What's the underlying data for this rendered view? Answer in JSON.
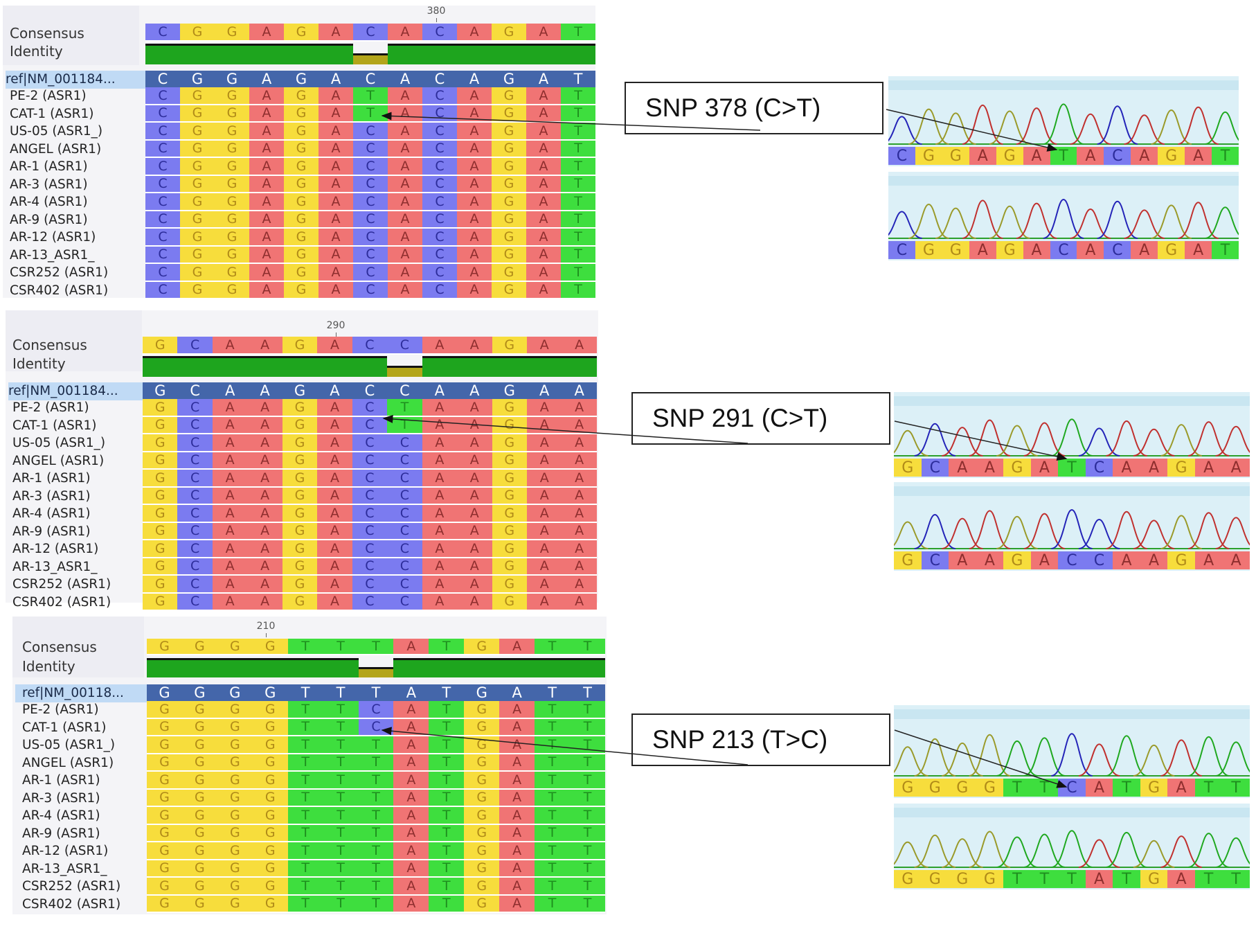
{
  "labels": {
    "consensus": "Consensus",
    "identity": "Identity"
  },
  "colors": {
    "A": "#f07474",
    "C": "#7b7bf0",
    "G": "#f7dd3c",
    "T": "#3ede3e",
    "ref_bg": "#4466aa",
    "identity_match": "#1ea51e",
    "identity_mismatch": "#b3a51a"
  },
  "rows": [
    "PE-2 (ASR1)",
    "CAT-1 (ASR1)",
    "US-05 (ASR1_)",
    "ANGEL (ASR1)",
    "AR-1 (ASR1)",
    "AR-3 (ASR1)",
    "AR-4 (ASR1)",
    "AR-9 (ASR1)",
    "AR-12 (ASR1)",
    "AR-13_ASR1_",
    "CSR252 (ASR1)",
    "CSR402 (ASR1)"
  ],
  "panels": [
    {
      "ref_name": "ref|NM_001184...",
      "ruler": "380",
      "consensus": "CGGAGACACAGAT",
      "alt": "T",
      "callout": "SNP 378 (C>T)",
      "trace_mut": "CGGAGATACAGAT",
      "trace_wt": "CGGAGACACAGAT"
    },
    {
      "ref_name": "ref|NM_001184...",
      "ruler": "290",
      "consensus": "GCAAGACCAAGAA",
      "alt": "T",
      "callout": "SNP 291 (C>T)",
      "trace_mut": "GCAAGATCAAGAA",
      "trace_wt": "GCAAGACCAAGAA"
    },
    {
      "ref_name": "ref|NM_00118...",
      "ruler": "210",
      "consensus": "GGGGTTTATGATT",
      "alt": "C",
      "callout": "SNP 213 (T>C)",
      "trace_mut": "GGGGTTCATGATT",
      "trace_wt": "GGGGTTTATGATT"
    }
  ]
}
